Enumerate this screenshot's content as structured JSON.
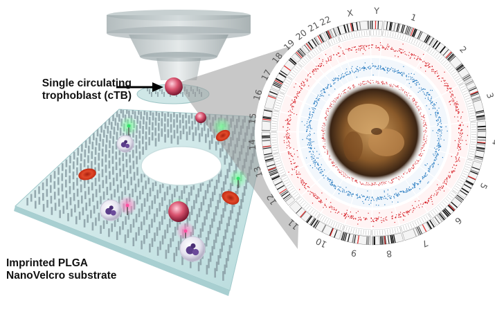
{
  "labels": {
    "ctb_line1": "Single circulating",
    "ctb_line2": "trophoblast (cTB)",
    "substrate_line1": "Imprinted PLGA",
    "substrate_line2": "NanoVelcro substrate"
  },
  "circos": {
    "chromosomes": [
      "1",
      "2",
      "3",
      "4",
      "5",
      "6",
      "7",
      "8",
      "9",
      "10",
      "11",
      "12",
      "13",
      "14",
      "15",
      "16",
      "17",
      "18",
      "19",
      "20",
      "21",
      "22",
      "X",
      "Y"
    ],
    "track_colors": {
      "outer": "#d62027",
      "inner": "#2e7fc2",
      "ideogram": "#111111",
      "centromere": "#e03030"
    }
  },
  "colors": {
    "substrate": "#cfe9ea",
    "pillar": "#8a9ea4",
    "rbc": "#d9351c",
    "ctb_cell": "#c43a55",
    "green_tip": "#33e06a",
    "pink_tip": "#ff4fa0"
  }
}
